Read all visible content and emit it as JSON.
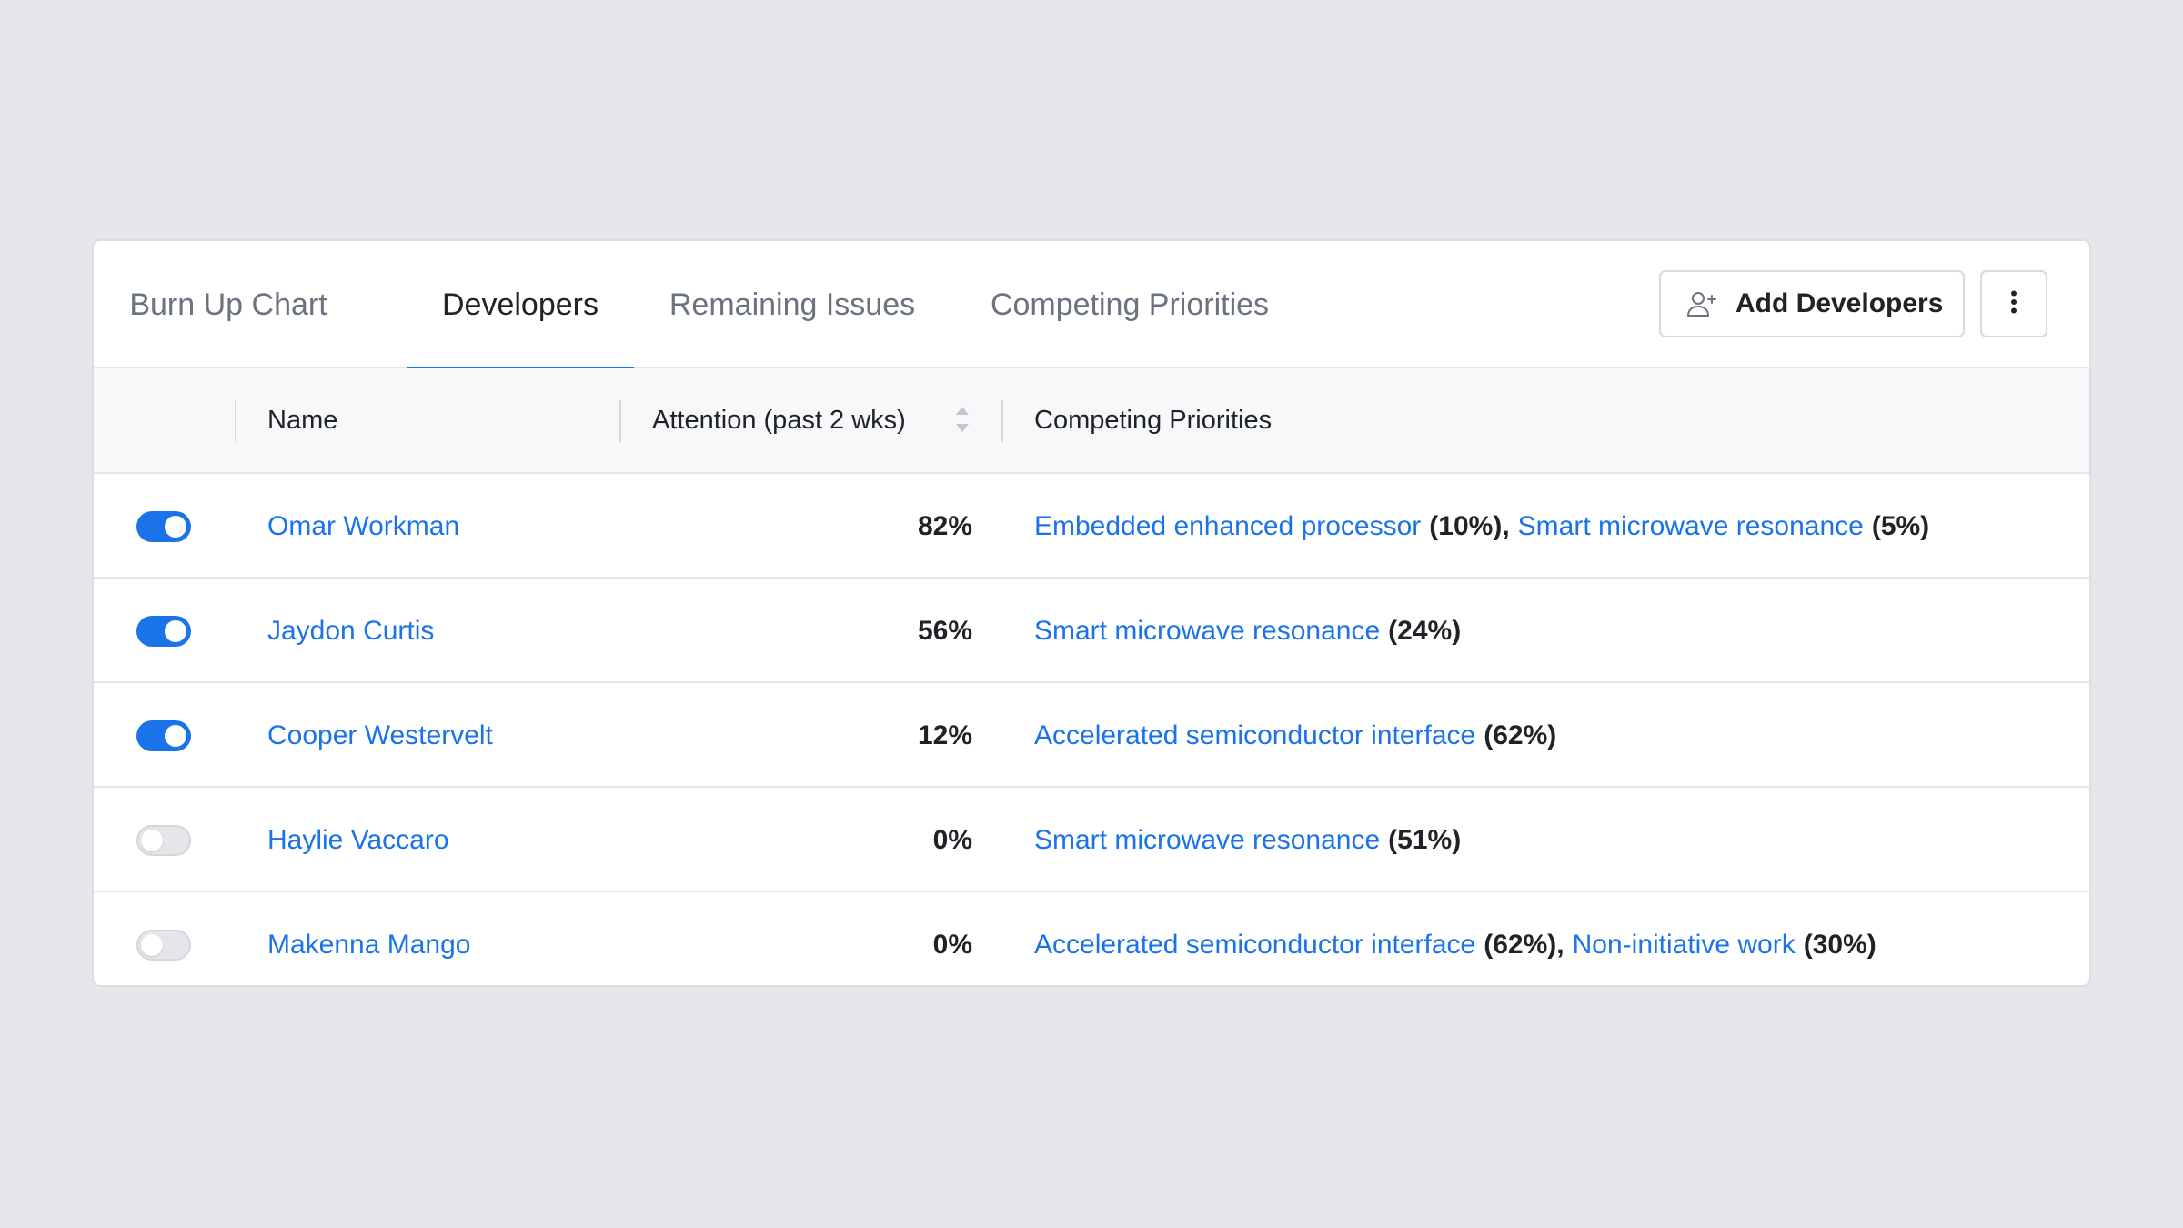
{
  "tabs": [
    {
      "label": "Burn Up Chart"
    },
    {
      "label": "Developers"
    },
    {
      "label": "Remaining Issues"
    },
    {
      "label": "Competing Priorities"
    }
  ],
  "toolbar": {
    "add_label": "Add Developers",
    "add_icon": "user-plus-icon",
    "more_icon": "more-vertical-icon"
  },
  "table": {
    "columns": {
      "name": "Name",
      "attention": "Attention (past 2 wks)",
      "priorities": "Competing Priorities"
    },
    "rows": [
      {
        "enabled": true,
        "name": "Omar Workman",
        "attention": "82%",
        "priorities": [
          {
            "label": "Embedded enhanced processor",
            "pct": "(10%)"
          },
          {
            "label": "Smart microwave resonance",
            "pct": "(5%)"
          }
        ]
      },
      {
        "enabled": true,
        "name": "Jaydon Curtis",
        "attention": "56%",
        "priorities": [
          {
            "label": "Smart microwave resonance",
            "pct": "(24%)"
          }
        ]
      },
      {
        "enabled": true,
        "name": "Cooper Westervelt",
        "attention": "12%",
        "priorities": [
          {
            "label": "Accelerated semiconductor interface",
            "pct": "(62%)"
          }
        ]
      },
      {
        "enabled": false,
        "name": "Haylie Vaccaro",
        "attention": "0%",
        "priorities": [
          {
            "label": "Smart microwave resonance",
            "pct": "(51%)"
          }
        ]
      },
      {
        "enabled": false,
        "name": "Makenna Mango",
        "attention": "0%",
        "priorities": [
          {
            "label": "Accelerated semiconductor interface",
            "pct": "(62%)"
          },
          {
            "label": "Non-initiative work",
            "pct": "(30%)"
          }
        ]
      }
    ]
  },
  "colors": {
    "accent": "#1a73e8",
    "background": "#e6e7ea",
    "text": "#1f2328",
    "muted": "#6b7280"
  }
}
